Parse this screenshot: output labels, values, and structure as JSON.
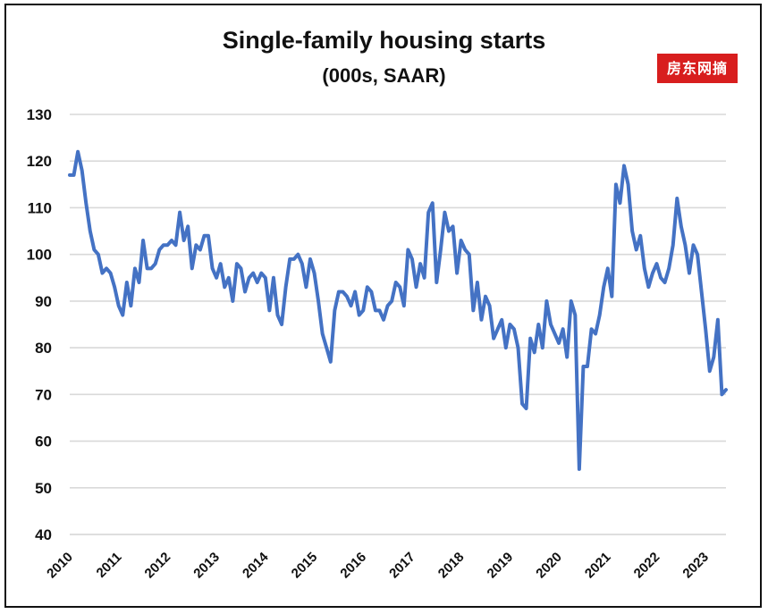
{
  "badge": {
    "text": "房东网摘"
  },
  "chart_data": {
    "type": "line",
    "title": "Single-family housing starts",
    "subtitle": "(000s, SAAR)",
    "xlabel": "",
    "ylabel": "",
    "ylim": [
      40,
      130
    ],
    "xlim": [
      "2010-01",
      "2023-06"
    ],
    "yticks": [
      40,
      50,
      60,
      70,
      80,
      90,
      100,
      110,
      120,
      130
    ],
    "xticks": [
      "2010",
      "2011",
      "2012",
      "2013",
      "2014",
      "2015",
      "2016",
      "2017",
      "2018",
      "2019",
      "2020",
      "2021",
      "2022",
      "2023"
    ],
    "grid": true,
    "colors": {
      "line": "#4472c4",
      "grid": "#d9d9d9"
    },
    "series": [
      {
        "name": "",
        "x": [
          "2010-01",
          "2010-02",
          "2010-03",
          "2010-04",
          "2010-05",
          "2010-06",
          "2010-07",
          "2010-08",
          "2010-09",
          "2010-10",
          "2010-11",
          "2010-12",
          "2011-01",
          "2011-02",
          "2011-03",
          "2011-04",
          "2011-05",
          "2011-06",
          "2011-07",
          "2011-08",
          "2011-09",
          "2011-10",
          "2011-11",
          "2011-12",
          "2012-01",
          "2012-02",
          "2012-03",
          "2012-04",
          "2012-05",
          "2012-06",
          "2012-07",
          "2012-08",
          "2012-09",
          "2012-10",
          "2012-11",
          "2012-12",
          "2013-01",
          "2013-02",
          "2013-03",
          "2013-04",
          "2013-05",
          "2013-06",
          "2013-07",
          "2013-08",
          "2013-09",
          "2013-10",
          "2013-11",
          "2013-12",
          "2014-01",
          "2014-02",
          "2014-03",
          "2014-04",
          "2014-05",
          "2014-06",
          "2014-07",
          "2014-08",
          "2014-09",
          "2014-10",
          "2014-11",
          "2014-12",
          "2015-01",
          "2015-02",
          "2015-03",
          "2015-04",
          "2015-05",
          "2015-06",
          "2015-07",
          "2015-08",
          "2015-09",
          "2015-10",
          "2015-11",
          "2015-12",
          "2016-01",
          "2016-02",
          "2016-03",
          "2016-04",
          "2016-05",
          "2016-06",
          "2016-07",
          "2016-08",
          "2016-09",
          "2016-10",
          "2016-11",
          "2016-12",
          "2017-01",
          "2017-02",
          "2017-03",
          "2017-04",
          "2017-05",
          "2017-06",
          "2017-07",
          "2017-08",
          "2017-09",
          "2017-10",
          "2017-11",
          "2017-12",
          "2018-01",
          "2018-02",
          "2018-03",
          "2018-04",
          "2018-05",
          "2018-06",
          "2018-07",
          "2018-08",
          "2018-09",
          "2018-10",
          "2018-11",
          "2018-12",
          "2019-01",
          "2019-02",
          "2019-03",
          "2019-04",
          "2019-05",
          "2019-06",
          "2019-07",
          "2019-08",
          "2019-09",
          "2019-10",
          "2019-11",
          "2019-12",
          "2020-01",
          "2020-02",
          "2020-03",
          "2020-04",
          "2020-05",
          "2020-06",
          "2020-07",
          "2020-08",
          "2020-09",
          "2020-10",
          "2020-11",
          "2020-12",
          "2021-01",
          "2021-02",
          "2021-03",
          "2021-04",
          "2021-05",
          "2021-06",
          "2021-07",
          "2021-08",
          "2021-09",
          "2021-10",
          "2021-11",
          "2021-12",
          "2022-01",
          "2022-02",
          "2022-03",
          "2022-04",
          "2022-05",
          "2022-06",
          "2022-07",
          "2022-08",
          "2022-09",
          "2022-10",
          "2022-11",
          "2022-12",
          "2023-01",
          "2023-02",
          "2023-03",
          "2023-04",
          "2023-05",
          "2023-06"
        ],
        "values": [
          117,
          117,
          122,
          118,
          111,
          105,
          101,
          100,
          96,
          97,
          96,
          93,
          89,
          87,
          94,
          89,
          97,
          94,
          103,
          97,
          97,
          98,
          101,
          102,
          102,
          103,
          102,
          109,
          103,
          106,
          97,
          102,
          101,
          104,
          104,
          97,
          95,
          98,
          93,
          95,
          90,
          98,
          97,
          92,
          95,
          96,
          94,
          96,
          95,
          88,
          95,
          87,
          85,
          93,
          99,
          99,
          100,
          98,
          93,
          99,
          96,
          90,
          83,
          80,
          77,
          88,
          92,
          92,
          91,
          89,
          92,
          87,
          88,
          93,
          92,
          88,
          88,
          86,
          89,
          90,
          94,
          93,
          89,
          101,
          99,
          93,
          98,
          95,
          109,
          111,
          94,
          101,
          109,
          105,
          106,
          96,
          103,
          101,
          100,
          88,
          94,
          86,
          91,
          89,
          82,
          84,
          86,
          80,
          85,
          84,
          80,
          68,
          67,
          82,
          79,
          85,
          80,
          90,
          85,
          83,
          81,
          84,
          78,
          90,
          87,
          54,
          76,
          76,
          84,
          83,
          87,
          93,
          97,
          91,
          115,
          111,
          119,
          115,
          105,
          101,
          104,
          97,
          93,
          96,
          98,
          95,
          94,
          97,
          102,
          112,
          106,
          102,
          96,
          102,
          100,
          92,
          84,
          75,
          78,
          86,
          70,
          71
        ]
      }
    ]
  }
}
